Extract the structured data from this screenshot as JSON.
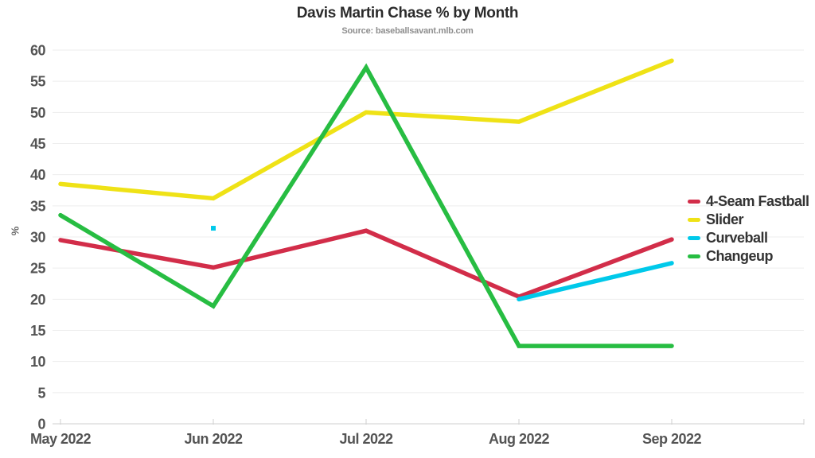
{
  "title": "Davis Martin Chase % by Month",
  "subtitle": "Source: baseballsavant.mlb.com",
  "colors": {
    "background": "#ffffff",
    "gridline": "#ededed",
    "axis_line": "#cfcfcf",
    "tick_text": "#545454",
    "title_text": "#2b2b2b",
    "subtitle_text": "#8e8e8e"
  },
  "chart_data": {
    "type": "line",
    "title": "Davis Martin Chase % by Month",
    "subtitle": "Source: baseballsavant.mlb.com",
    "xlabel": "",
    "ylabel": "%",
    "categories": [
      "May 2022",
      "Jun 2022",
      "Jul 2022",
      "Aug 2022",
      "Sep 2022"
    ],
    "ylim": [
      0,
      60
    ],
    "ytick_step": 5,
    "grid": true,
    "legend_position": "right-center",
    "series": [
      {
        "name": "4-Seam Fastball",
        "color": "#d22d49",
        "values": [
          29.5,
          25.1,
          31.0,
          20.4,
          29.6
        ]
      },
      {
        "name": "Slider",
        "color": "#efe216",
        "values": [
          38.5,
          36.2,
          50.0,
          48.5,
          58.3
        ]
      },
      {
        "name": "Curveball",
        "color": "#00c9ea",
        "values": [
          null,
          31.4,
          null,
          20.0,
          25.8
        ]
      },
      {
        "name": "Changeup",
        "color": "#27bd42",
        "values": [
          33.5,
          18.9,
          57.2,
          12.5,
          12.5
        ]
      }
    ]
  }
}
